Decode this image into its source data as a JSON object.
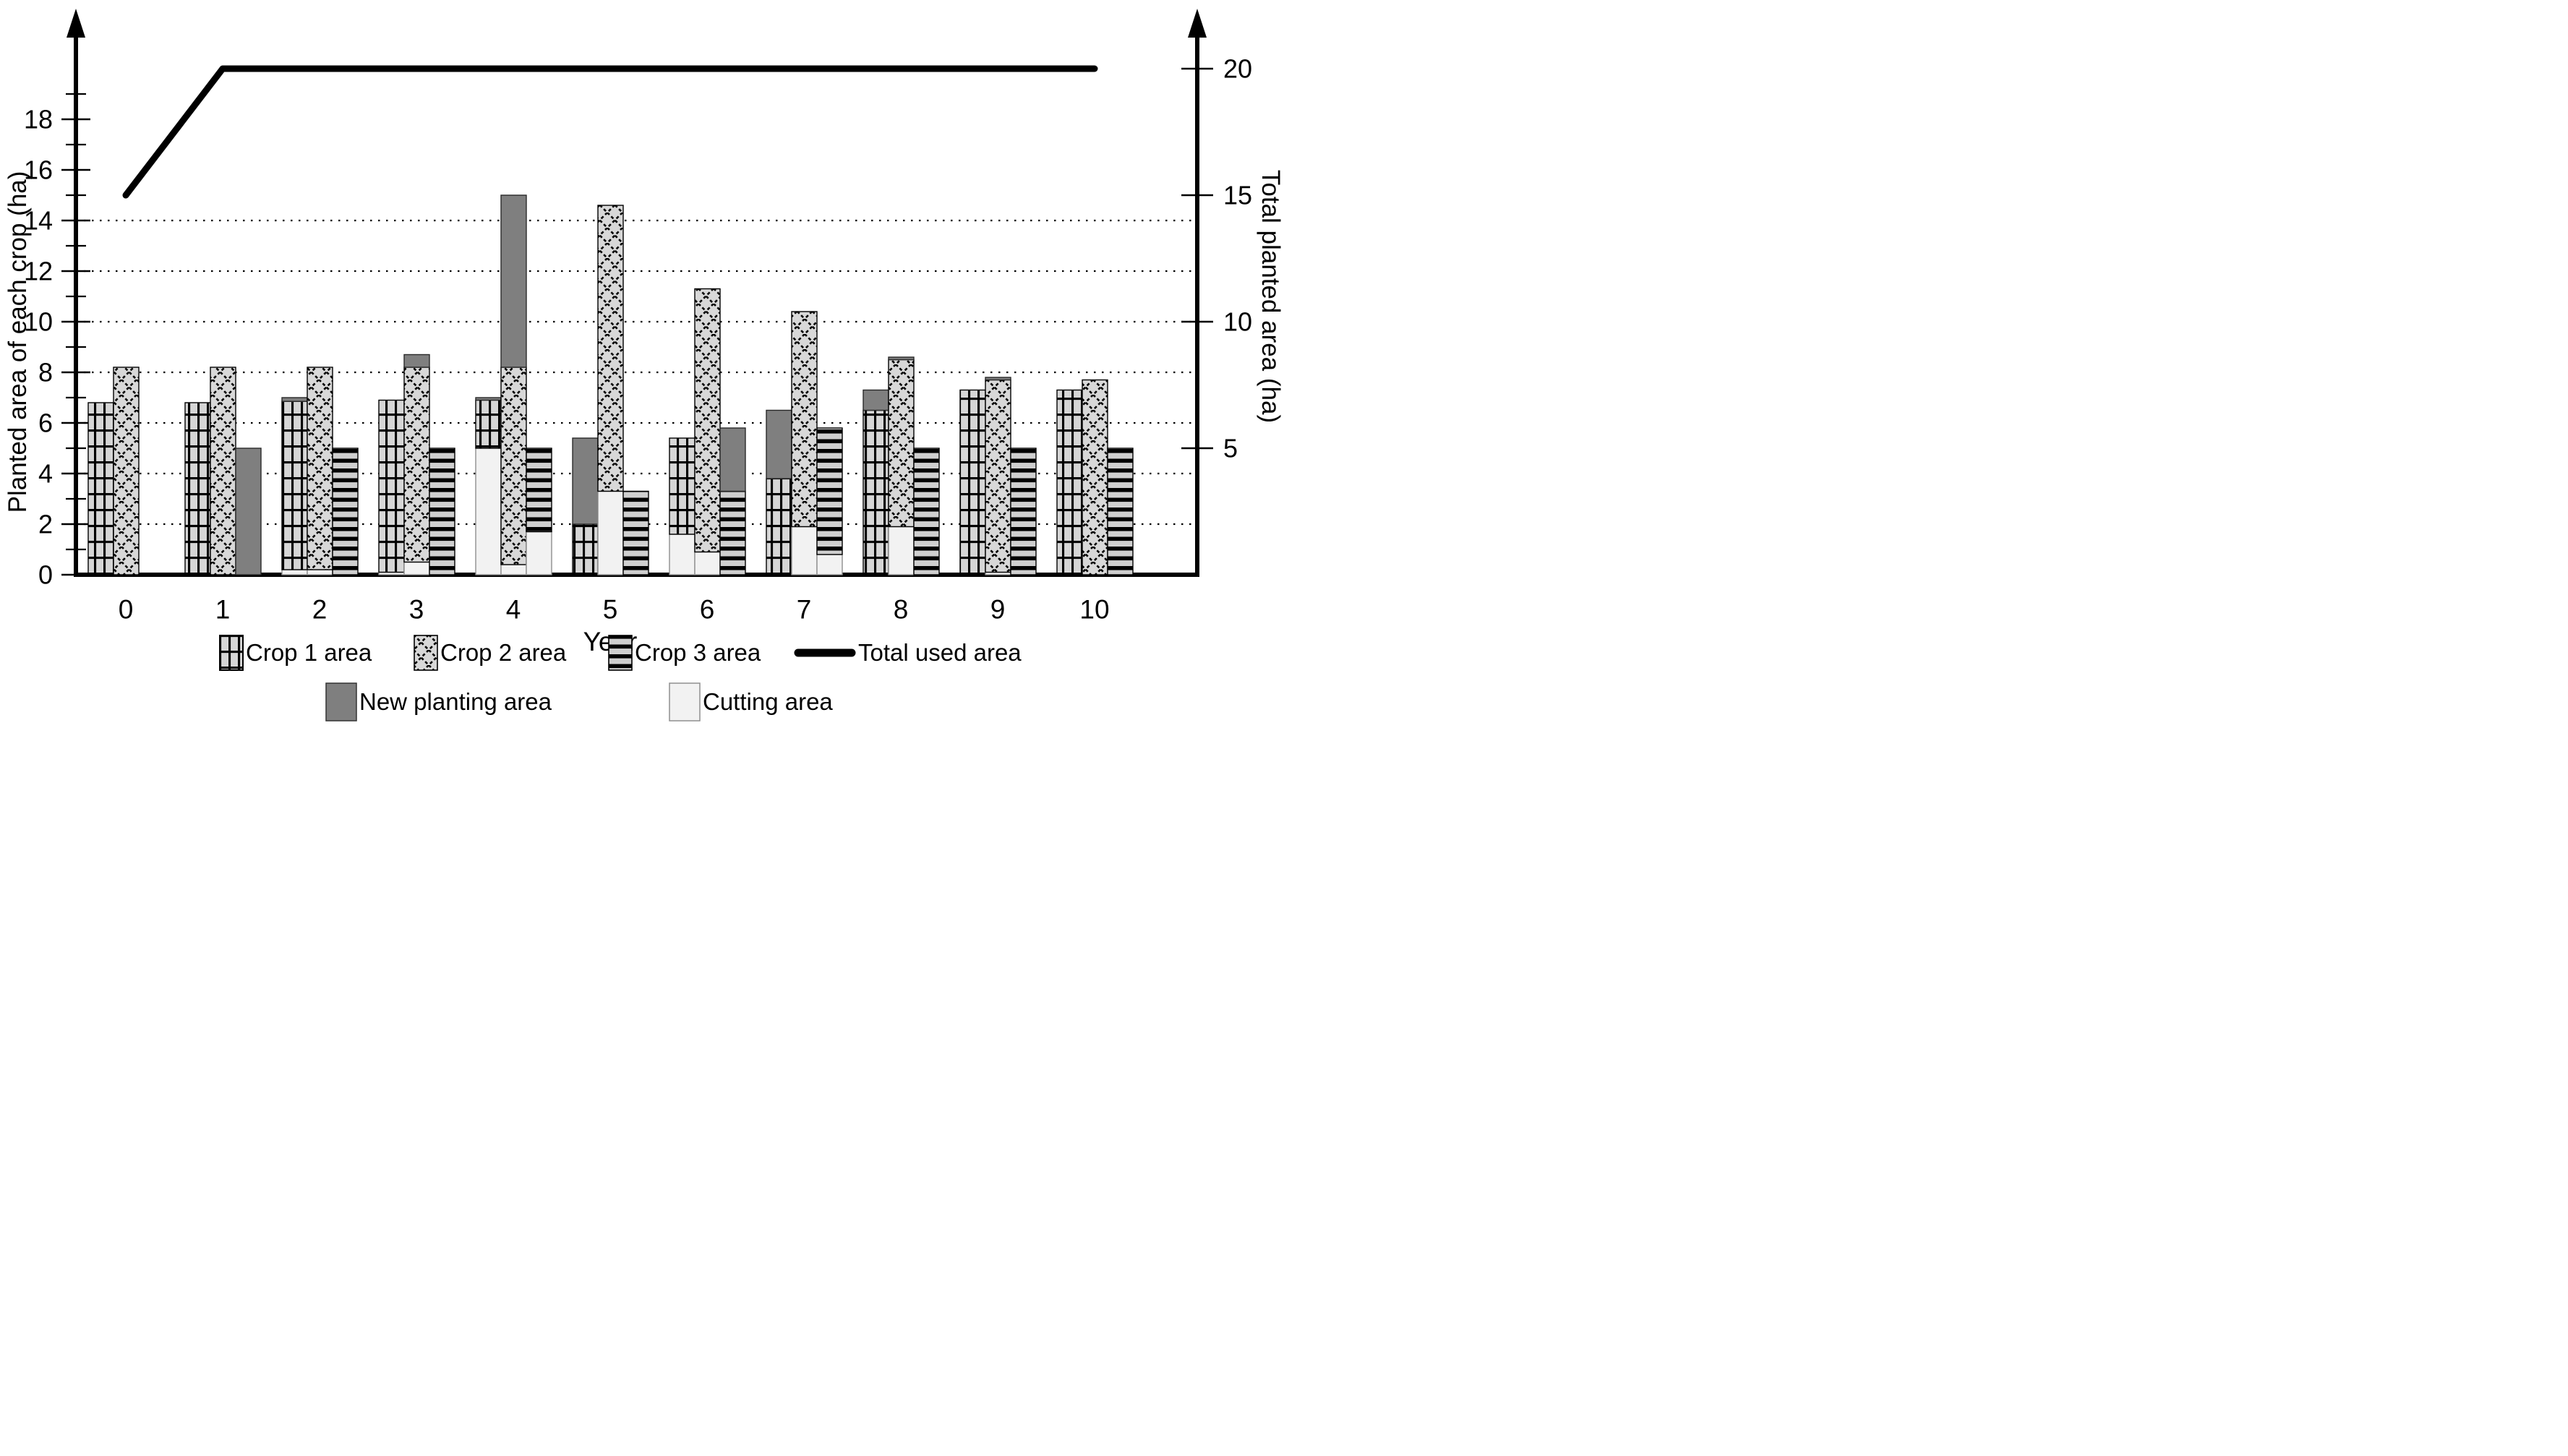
{
  "chart_data": {
    "type": "bar",
    "title": "",
    "xlabel": "Year",
    "ylabel_left": "Planted area of each crop (ha)",
    "ylabel_right": "Total planted area (ha)",
    "x": {
      "tick_values": [
        "0",
        "1",
        "2",
        "3",
        "4",
        "5",
        "6",
        "7",
        "8",
        "9",
        "10"
      ]
    },
    "y_left": {
      "min": 0,
      "max": 20,
      "tick_values": [
        0,
        2,
        4,
        6,
        8,
        10,
        12,
        14,
        16,
        18
      ],
      "minor_step": 1,
      "grid_values": [
        2,
        4,
        6,
        8,
        10,
        12,
        14
      ],
      "grid_style": "dotted"
    },
    "y_right": {
      "tick_values": [
        5,
        10,
        15,
        20
      ]
    },
    "colors": {
      "bar_fill": "#d6d6d6",
      "pattern_line": "#000000",
      "new_planting": "#7f7f7f",
      "cutting": "#f2f2f2",
      "line": "#000000",
      "text": "#000000"
    },
    "series_names": {
      "crop1": "Crop 1 area",
      "crop2": "Crop 2 area",
      "crop3": "Crop 3 area",
      "new": "New planting area",
      "cut": "Cutting area",
      "total": "Total used area"
    },
    "bars": [
      {
        "year": 0,
        "stacks": [
          {
            "slot": 0,
            "segments": [
              {
                "series": "crop1",
                "from": 0,
                "to": 6.8
              }
            ]
          },
          {
            "slot": 1,
            "segments": [
              {
                "series": "crop2",
                "from": 0,
                "to": 8.2
              }
            ]
          }
        ]
      },
      {
        "year": 1,
        "stacks": [
          {
            "slot": 0,
            "segments": [
              {
                "series": "crop1",
                "from": 0,
                "to": 6.8
              }
            ]
          },
          {
            "slot": 1,
            "segments": [
              {
                "series": "crop2",
                "from": 0,
                "to": 8.2
              }
            ]
          },
          {
            "slot": 2,
            "segments": [
              {
                "series": "new",
                "from": 0,
                "to": 5.0
              }
            ]
          }
        ]
      },
      {
        "year": 2,
        "stacks": [
          {
            "slot": 0,
            "segments": [
              {
                "series": "cut",
                "from": 0,
                "to": 0.2
              },
              {
                "series": "crop1",
                "from": 0.2,
                "to": 6.85
              },
              {
                "series": "new",
                "from": 6.85,
                "to": 7.0
              }
            ]
          },
          {
            "slot": 1,
            "segments": [
              {
                "series": "cut",
                "from": 0,
                "to": 0.2
              },
              {
                "series": "crop2",
                "from": 0.2,
                "to": 8.2
              }
            ]
          },
          {
            "slot": 2,
            "segments": [
              {
                "series": "crop3",
                "from": 0,
                "to": 5.0
              }
            ]
          }
        ]
      },
      {
        "year": 3,
        "stacks": [
          {
            "slot": 0,
            "segments": [
              {
                "series": "cut",
                "from": 0,
                "to": 0.1
              },
              {
                "series": "crop1",
                "from": 0.1,
                "to": 6.9
              }
            ]
          },
          {
            "slot": 1,
            "segments": [
              {
                "series": "cut",
                "from": 0,
                "to": 0.5
              },
              {
                "series": "crop2",
                "from": 0.5,
                "to": 8.2
              },
              {
                "series": "new",
                "from": 8.2,
                "to": 8.7
              }
            ]
          },
          {
            "slot": 2,
            "segments": [
              {
                "series": "crop3",
                "from": 0,
                "to": 5.0
              }
            ]
          }
        ]
      },
      {
        "year": 4,
        "stacks": [
          {
            "slot": 0,
            "segments": [
              {
                "series": "cut",
                "from": 0,
                "to": 5.0
              },
              {
                "series": "crop1",
                "from": 5.0,
                "to": 6.9
              },
              {
                "series": "new",
                "from": 6.9,
                "to": 7.0
              }
            ]
          },
          {
            "slot": 1,
            "segments": [
              {
                "series": "cut",
                "from": 0,
                "to": 0.4
              },
              {
                "series": "crop2",
                "from": 0.4,
                "to": 8.2
              },
              {
                "series": "new",
                "from": 8.2,
                "to": 15.0
              }
            ]
          },
          {
            "slot": 2,
            "segments": [
              {
                "series": "cut",
                "from": 0,
                "to": 1.7
              },
              {
                "series": "crop3",
                "from": 1.7,
                "to": 5.0
              }
            ]
          }
        ]
      },
      {
        "year": 5,
        "stacks": [
          {
            "slot": 0,
            "segments": [
              {
                "series": "crop1",
                "from": 0,
                "to": 2.0
              },
              {
                "series": "new",
                "from": 2.0,
                "to": 5.4
              }
            ]
          },
          {
            "slot": 1,
            "segments": [
              {
                "series": "cut",
                "from": 0,
                "to": 3.3
              },
              {
                "series": "crop2",
                "from": 3.3,
                "to": 14.6
              }
            ]
          },
          {
            "slot": 2,
            "segments": [
              {
                "series": "crop3",
                "from": 0,
                "to": 3.3
              }
            ]
          }
        ]
      },
      {
        "year": 6,
        "stacks": [
          {
            "slot": 0,
            "segments": [
              {
                "series": "cut",
                "from": 0,
                "to": 1.6
              },
              {
                "series": "crop1",
                "from": 1.6,
                "to": 5.4
              }
            ]
          },
          {
            "slot": 1,
            "segments": [
              {
                "series": "cut",
                "from": 0,
                "to": 0.9
              },
              {
                "series": "crop2",
                "from": 0.9,
                "to": 11.3
              }
            ]
          },
          {
            "slot": 2,
            "segments": [
              {
                "series": "crop3",
                "from": 0,
                "to": 3.3
              },
              {
                "series": "new",
                "from": 3.3,
                "to": 5.8
              }
            ]
          }
        ]
      },
      {
        "year": 7,
        "stacks": [
          {
            "slot": 0,
            "segments": [
              {
                "series": "crop1",
                "from": 0,
                "to": 3.8
              },
              {
                "series": "new",
                "from": 3.8,
                "to": 6.5
              }
            ]
          },
          {
            "slot": 1,
            "segments": [
              {
                "series": "cut",
                "from": 0,
                "to": 1.9
              },
              {
                "series": "crop2",
                "from": 1.9,
                "to": 10.4
              }
            ]
          },
          {
            "slot": 2,
            "segments": [
              {
                "series": "cut",
                "from": 0,
                "to": 0.8
              },
              {
                "series": "crop3",
                "from": 0.8,
                "to": 5.8
              }
            ]
          }
        ]
      },
      {
        "year": 8,
        "stacks": [
          {
            "slot": 0,
            "segments": [
              {
                "series": "crop1",
                "from": 0,
                "to": 6.5
              },
              {
                "series": "new",
                "from": 6.5,
                "to": 7.3
              }
            ]
          },
          {
            "slot": 1,
            "segments": [
              {
                "series": "cut",
                "from": 0,
                "to": 1.9
              },
              {
                "series": "crop2",
                "from": 1.9,
                "to": 8.5
              },
              {
                "series": "new",
                "from": 8.5,
                "to": 8.6
              }
            ]
          },
          {
            "slot": 2,
            "segments": [
              {
                "series": "crop3",
                "from": 0,
                "to": 5.0
              }
            ]
          }
        ]
      },
      {
        "year": 9,
        "stacks": [
          {
            "slot": 0,
            "segments": [
              {
                "series": "crop1",
                "from": 0,
                "to": 7.3
              }
            ]
          },
          {
            "slot": 1,
            "segments": [
              {
                "series": "cut",
                "from": 0,
                "to": 0.1
              },
              {
                "series": "crop2",
                "from": 0.1,
                "to": 7.7
              },
              {
                "series": "new",
                "from": 7.7,
                "to": 7.8
              }
            ]
          },
          {
            "slot": 2,
            "segments": [
              {
                "series": "crop3",
                "from": 0,
                "to": 5.0
              }
            ]
          }
        ]
      },
      {
        "year": 10,
        "stacks": [
          {
            "slot": 0,
            "segments": [
              {
                "series": "crop1",
                "from": 0,
                "to": 7.3
              }
            ]
          },
          {
            "slot": 1,
            "segments": [
              {
                "series": "crop2",
                "from": 0,
                "to": 7.7
              }
            ]
          },
          {
            "slot": 2,
            "segments": [
              {
                "series": "crop3",
                "from": 0,
                "to": 5.0
              }
            ]
          }
        ]
      }
    ],
    "line": {
      "name": "Total used area",
      "axis": "right",
      "points": [
        [
          0,
          15
        ],
        [
          1,
          20
        ],
        [
          10,
          20
        ]
      ]
    },
    "legend": {
      "crop1": "Crop 1 area",
      "crop2": "Crop 2 area",
      "crop3": "Crop 3 area",
      "total": "Total used area",
      "new": "New planting area",
      "cutting": "Cutting area"
    }
  }
}
